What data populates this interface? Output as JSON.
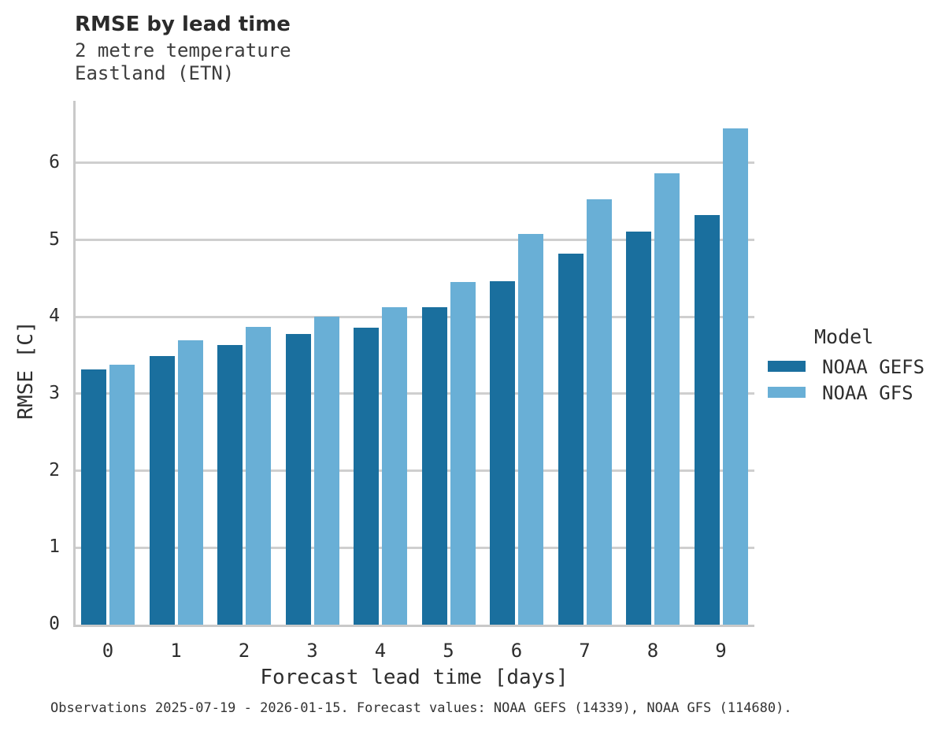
{
  "header": {
    "title": "RMSE by lead time",
    "subtitle_line_1": "2 metre temperature",
    "subtitle_line_2": "Eastland (ETN)"
  },
  "chart_data": {
    "type": "bar",
    "title": "RMSE by lead time",
    "subtitle": [
      "2 metre temperature",
      "Eastland (ETN)"
    ],
    "categories": [
      "0",
      "1",
      "2",
      "3",
      "4",
      "5",
      "6",
      "7",
      "8",
      "9"
    ],
    "series": [
      {
        "name": "NOAA GEFS",
        "color": "#1a6f9e",
        "values": [
          3.32,
          3.49,
          3.63,
          3.78,
          3.86,
          4.12,
          4.46,
          4.82,
          5.11,
          5.32
        ]
      },
      {
        "name": "NOAA GFS",
        "color": "#69afd6",
        "values": [
          3.38,
          3.7,
          3.87,
          4.0,
          4.12,
          4.45,
          5.08,
          5.53,
          5.87,
          6.45
        ]
      }
    ],
    "xlabel": "Forecast lead time [days]",
    "ylabel": "RMSE [C]",
    "ylim": [
      0,
      6.8
    ],
    "yticks": [
      0,
      1,
      2,
      3,
      4,
      5,
      6
    ],
    "grid": true,
    "legend_title": "Model",
    "legend_position": "right"
  },
  "footer": {
    "text": "Observations 2025-07-19 - 2026-01-15. Forecast values: NOAA GEFS (14339), NOAA GFS (114680)."
  }
}
